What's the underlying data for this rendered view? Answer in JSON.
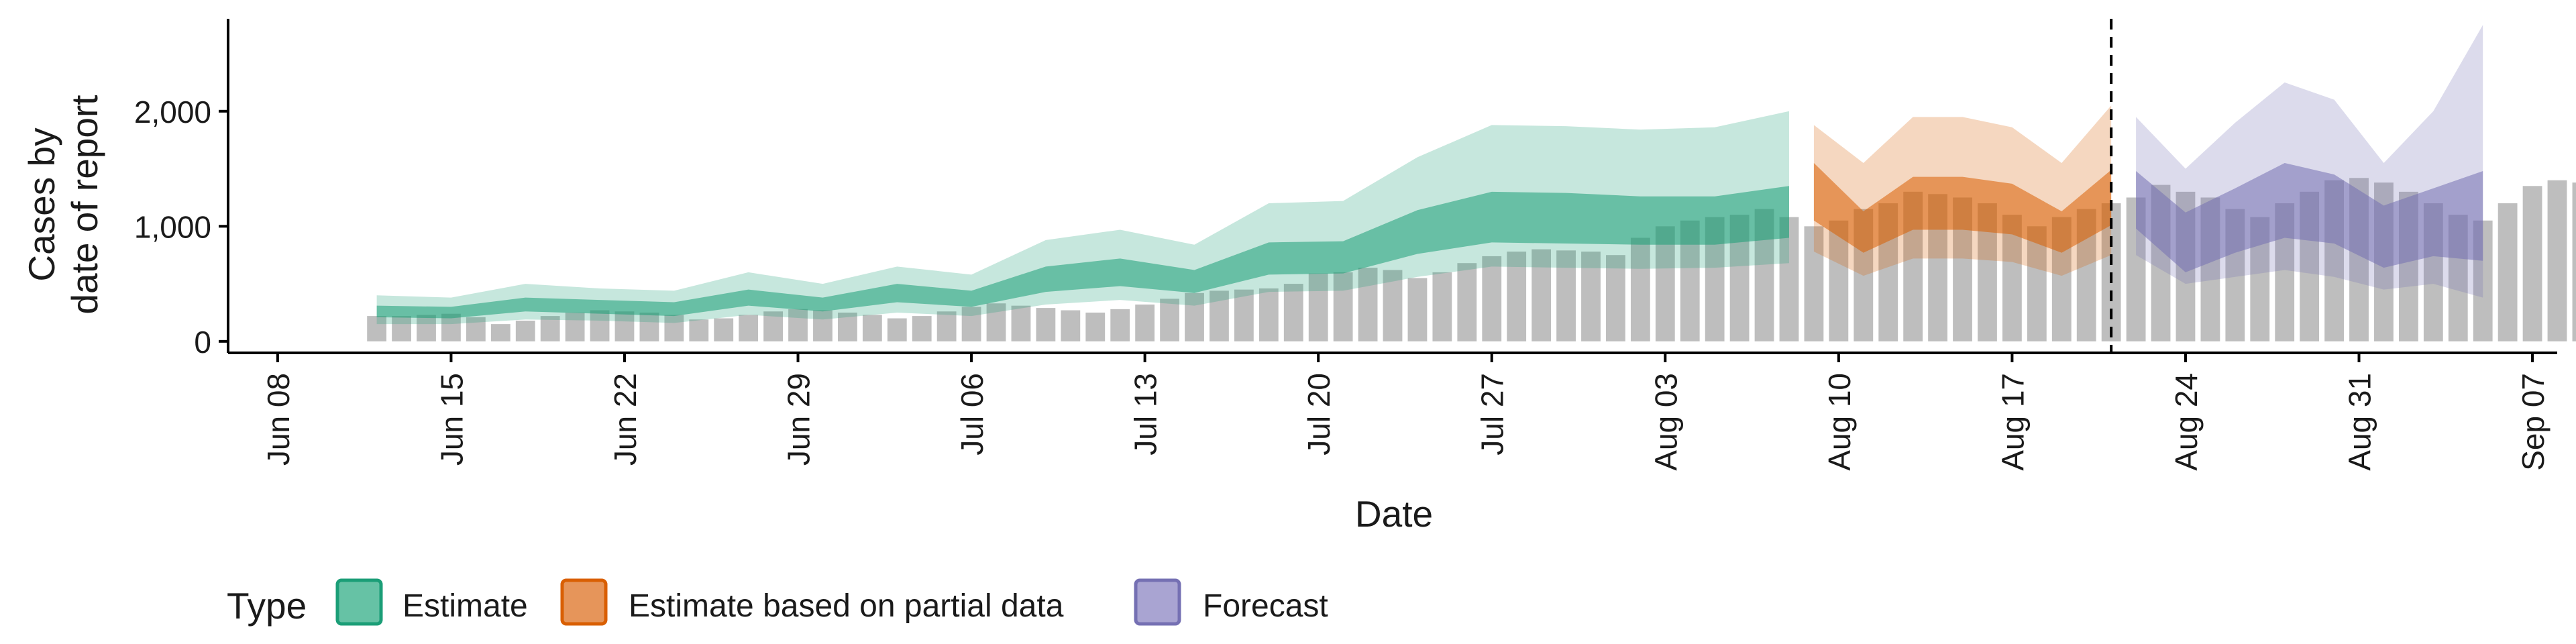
{
  "chart_data": {
    "type": "area",
    "title": "",
    "xlabel": "Date",
    "ylabel": [
      "Cases by",
      "date of report"
    ],
    "y_ticks": [
      0,
      1000,
      2000
    ],
    "y_tick_labels": [
      "0",
      "1,000",
      "2,000"
    ],
    "ylim": [
      -100,
      2850
    ],
    "xlim": [
      "2020-06-06",
      "2020-09-08"
    ],
    "x_ticks": [
      "2020-06-08",
      "2020-06-15",
      "2020-06-22",
      "2020-06-29",
      "2020-07-06",
      "2020-07-13",
      "2020-07-20",
      "2020-07-27",
      "2020-08-03",
      "2020-08-10",
      "2020-08-17",
      "2020-08-24",
      "2020-08-31",
      "2020-09-07"
    ],
    "x_tick_labels": [
      "Jun 08",
      "Jun 15",
      "Jun 22",
      "Jun 29",
      "Jul 06",
      "Jul 13",
      "Jul 20",
      "Jul 27",
      "Aug 03",
      "Aug 10",
      "Aug 17",
      "Aug 24",
      "Aug 31",
      "Sep 07"
    ],
    "forecast_divider_date": "2020-08-21",
    "grid": false,
    "legend": {
      "title": "Type",
      "position": "bottom",
      "entries": [
        {
          "label": "Estimate",
          "fill": "#66c2a5",
          "stroke": "#1b9e77"
        },
        {
          "label": "Estimate based on partial data",
          "fill": "#e6955a",
          "stroke": "#d95f02"
        },
        {
          "label": "Forecast",
          "fill": "#a9a4d2",
          "stroke": "#7570b3"
        }
      ]
    },
    "colors": {
      "bars": "#bebebe",
      "estimate": "#1b9e77",
      "partial": "#d95f02",
      "forecast": "#7570b3",
      "divider": "#000000"
    },
    "reported_cases": {
      "start_date": "2020-06-12",
      "values": [
        220,
        220,
        230,
        240,
        210,
        150,
        180,
        220,
        250,
        270,
        260,
        250,
        230,
        190,
        200,
        230,
        260,
        280,
        270,
        250,
        230,
        200,
        220,
        260,
        300,
        330,
        310,
        290,
        270,
        250,
        280,
        320,
        370,
        420,
        440,
        450,
        460,
        500,
        590,
        600,
        640,
        620,
        550,
        600,
        680,
        740,
        780,
        800,
        790,
        780,
        750,
        900,
        1000,
        1050,
        1080,
        1100,
        1150,
        1080,
        1000,
        1050,
        1150,
        1200,
        1300,
        1280,
        1250,
        1200,
        1100,
        1000,
        1080,
        1150,
        1200,
        1250,
        1360,
        1300,
        1250,
        1150,
        1080,
        1200,
        1300,
        1400,
        1420,
        1380,
        1300,
        1200,
        1100,
        1050,
        1200,
        1350,
        1400,
        1380
      ]
    },
    "series": [
      {
        "name": "Estimate",
        "x": [
          "2020-06-12",
          "2020-06-15",
          "2020-06-18",
          "2020-06-21",
          "2020-06-24",
          "2020-06-27",
          "2020-06-30",
          "2020-07-03",
          "2020-07-06",
          "2020-07-09",
          "2020-07-12",
          "2020-07-15",
          "2020-07-18",
          "2020-07-21",
          "2020-07-24",
          "2020-07-27",
          "2020-07-30",
          "2020-08-02",
          "2020-08-05",
          "2020-08-08"
        ],
        "median": [
          260,
          250,
          320,
          300,
          280,
          380,
          320,
          420,
          370,
          540,
          600,
          520,
          720,
          730,
          950,
          1080,
          1070,
          1050,
          1050,
          1120
        ],
        "inner_low": [
          210,
          200,
          260,
          240,
          220,
          310,
          260,
          340,
          300,
          430,
          480,
          420,
          580,
          590,
          760,
          860,
          850,
          840,
          840,
          900
        ],
        "inner_high": [
          310,
          300,
          380,
          360,
          340,
          450,
          380,
          500,
          440,
          650,
          720,
          620,
          860,
          870,
          1140,
          1300,
          1290,
          1260,
          1260,
          1350
        ],
        "outer_low": [
          150,
          150,
          190,
          180,
          160,
          230,
          190,
          250,
          220,
          320,
          360,
          310,
          430,
          440,
          560,
          650,
          640,
          630,
          640,
          680
        ],
        "outer_high": [
          400,
          380,
          500,
          460,
          440,
          600,
          500,
          650,
          580,
          880,
          970,
          840,
          1200,
          1220,
          1600,
          1880,
          1870,
          1840,
          1860,
          2000
        ]
      },
      {
        "name": "Estimate based on partial data",
        "x": [
          "2020-08-09",
          "2020-08-11",
          "2020-08-13",
          "2020-08-15",
          "2020-08-17",
          "2020-08-19",
          "2020-08-21"
        ],
        "median": [
          1300,
          950,
          1200,
          1200,
          1150,
          950,
          1250
        ],
        "inner_low": [
          1050,
          770,
          970,
          970,
          930,
          770,
          1010
        ],
        "inner_high": [
          1550,
          1130,
          1430,
          1430,
          1370,
          1130,
          1490
        ],
        "outer_low": [
          780,
          570,
          720,
          720,
          690,
          570,
          750
        ],
        "outer_high": [
          1880,
          1550,
          1950,
          1950,
          1860,
          1550,
          2050
        ]
      },
      {
        "name": "Forecast",
        "x": [
          "2020-08-22",
          "2020-08-24",
          "2020-08-26",
          "2020-08-28",
          "2020-08-30",
          "2020-09-01",
          "2020-09-03",
          "2020-09-05"
        ],
        "median": [
          1200,
          850,
          1050,
          1300,
          1200,
          900,
          1000,
          1200
        ],
        "inner_low": [
          980,
          600,
          770,
          900,
          850,
          640,
          740,
          700
        ],
        "inner_high": [
          1480,
          1120,
          1330,
          1550,
          1450,
          1180,
          1330,
          1480
        ],
        "outer_low": [
          750,
          500,
          560,
          620,
          560,
          450,
          500,
          380
        ],
        "outer_high": [
          1950,
          1500,
          1900,
          2250,
          2100,
          1550,
          2000,
          2750
        ]
      }
    ]
  }
}
